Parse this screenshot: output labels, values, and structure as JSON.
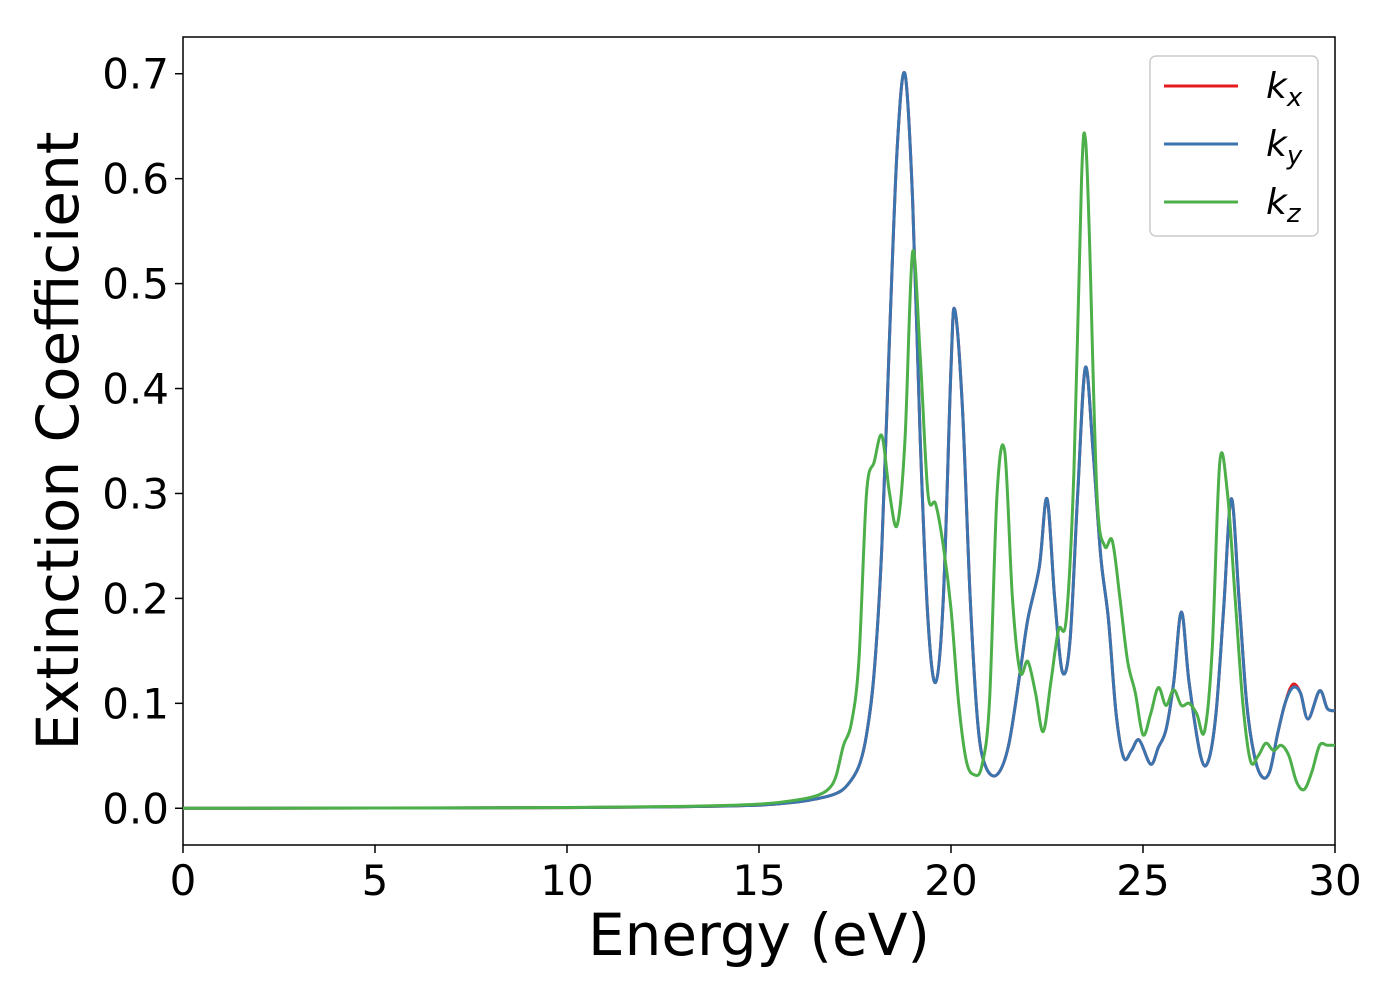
{
  "chart_data": {
    "type": "line",
    "title": "",
    "xlabel": "Energy (eV)",
    "ylabel": "Extinction Coefficient",
    "xlim": [
      0,
      30
    ],
    "ylim": [
      -0.035,
      0.735
    ],
    "xticks": [
      0,
      5,
      10,
      15,
      20,
      25,
      30
    ],
    "xtick_labels": [
      "0",
      "5",
      "10",
      "15",
      "20",
      "25",
      "30"
    ],
    "yticks": [
      0.0,
      0.1,
      0.2,
      0.3,
      0.4,
      0.5,
      0.6,
      0.7
    ],
    "ytick_labels": [
      "0.0",
      "0.1",
      "0.2",
      "0.3",
      "0.4",
      "0.5",
      "0.6",
      "0.7"
    ],
    "grid": false,
    "legend_position": "top-right",
    "series": [
      {
        "name": "k",
        "subscript": "x",
        "color": "#e41a1c",
        "x": [
          0,
          5,
          10,
          13,
          15,
          16,
          16.5,
          17,
          17.3,
          17.6,
          17.8,
          18.0,
          18.2,
          18.4,
          18.6,
          18.8,
          19.0,
          19.2,
          19.4,
          19.6,
          19.8,
          20.0,
          20.1,
          20.3,
          20.5,
          20.7,
          20.9,
          21.2,
          21.5,
          21.8,
          22.0,
          22.3,
          22.5,
          22.7,
          22.9,
          23.1,
          23.3,
          23.5,
          23.7,
          23.9,
          24.1,
          24.3,
          24.5,
          24.7,
          24.9,
          25.2,
          25.4,
          25.6,
          25.8,
          26.0,
          26.2,
          26.5,
          26.7,
          26.9,
          27.1,
          27.3,
          27.5,
          27.7,
          27.9,
          28.1,
          28.3,
          28.5,
          28.7,
          28.9,
          29.1,
          29.3,
          29.6,
          29.8,
          30.0
        ],
        "y": [
          0,
          0.0002,
          0.0006,
          0.0015,
          0.003,
          0.006,
          0.009,
          0.014,
          0.022,
          0.04,
          0.07,
          0.13,
          0.25,
          0.45,
          0.63,
          0.7,
          0.58,
          0.35,
          0.18,
          0.12,
          0.2,
          0.42,
          0.475,
          0.38,
          0.2,
          0.08,
          0.04,
          0.032,
          0.06,
          0.13,
          0.18,
          0.23,
          0.295,
          0.2,
          0.13,
          0.16,
          0.3,
          0.42,
          0.34,
          0.24,
          0.18,
          0.09,
          0.048,
          0.055,
          0.065,
          0.042,
          0.058,
          0.075,
          0.12,
          0.187,
          0.12,
          0.05,
          0.045,
          0.09,
          0.19,
          0.295,
          0.2,
          0.1,
          0.05,
          0.03,
          0.035,
          0.07,
          0.1,
          0.118,
          0.11,
          0.085,
          0.112,
          0.095,
          0.093
        ]
      },
      {
        "name": "k",
        "subscript": "y",
        "color": "#3a75b0",
        "x": [
          0,
          5,
          10,
          13,
          15,
          16,
          16.5,
          17,
          17.3,
          17.6,
          17.8,
          18.0,
          18.2,
          18.4,
          18.6,
          18.8,
          19.0,
          19.2,
          19.4,
          19.6,
          19.8,
          20.0,
          20.1,
          20.3,
          20.5,
          20.7,
          20.9,
          21.2,
          21.5,
          21.8,
          22.0,
          22.3,
          22.5,
          22.7,
          22.9,
          23.1,
          23.3,
          23.5,
          23.7,
          23.9,
          24.1,
          24.3,
          24.5,
          24.7,
          24.9,
          25.2,
          25.4,
          25.6,
          25.8,
          26.0,
          26.2,
          26.5,
          26.7,
          26.9,
          27.1,
          27.3,
          27.5,
          27.7,
          27.9,
          28.1,
          28.3,
          28.5,
          28.7,
          28.9,
          29.1,
          29.3,
          29.6,
          29.8,
          30.0
        ],
        "y": [
          0,
          0.0002,
          0.0006,
          0.0015,
          0.003,
          0.006,
          0.009,
          0.014,
          0.022,
          0.04,
          0.07,
          0.13,
          0.25,
          0.45,
          0.63,
          0.7,
          0.58,
          0.35,
          0.18,
          0.12,
          0.2,
          0.42,
          0.475,
          0.38,
          0.2,
          0.08,
          0.04,
          0.032,
          0.06,
          0.13,
          0.18,
          0.23,
          0.295,
          0.2,
          0.13,
          0.16,
          0.3,
          0.42,
          0.34,
          0.24,
          0.18,
          0.09,
          0.048,
          0.055,
          0.065,
          0.042,
          0.058,
          0.075,
          0.12,
          0.187,
          0.12,
          0.05,
          0.045,
          0.09,
          0.19,
          0.295,
          0.2,
          0.1,
          0.05,
          0.03,
          0.035,
          0.07,
          0.1,
          0.115,
          0.11,
          0.085,
          0.112,
          0.095,
          0.093
        ]
      },
      {
        "name": "k",
        "subscript": "z",
        "color": "#4daf4a",
        "x": [
          0,
          5,
          10,
          13,
          15,
          16,
          16.5,
          16.8,
          17.0,
          17.2,
          17.4,
          17.6,
          17.8,
          18.0,
          18.2,
          18.4,
          18.6,
          18.8,
          19.0,
          19.2,
          19.4,
          19.6,
          19.8,
          20.0,
          20.2,
          20.4,
          20.6,
          20.8,
          21.0,
          21.2,
          21.4,
          21.6,
          21.8,
          22.0,
          22.2,
          22.4,
          22.6,
          22.8,
          23.0,
          23.2,
          23.4,
          23.5,
          23.6,
          23.8,
          24.0,
          24.2,
          24.4,
          24.6,
          24.8,
          25.0,
          25.2,
          25.4,
          25.6,
          25.8,
          26.0,
          26.2,
          26.4,
          26.6,
          26.8,
          27.0,
          27.2,
          27.4,
          27.6,
          27.8,
          28.0,
          28.2,
          28.4,
          28.6,
          28.8,
          29.0,
          29.2,
          29.4,
          29.6,
          29.8,
          30.0
        ],
        "y": [
          0,
          0.0002,
          0.0007,
          0.0018,
          0.004,
          0.008,
          0.012,
          0.018,
          0.03,
          0.06,
          0.08,
          0.14,
          0.3,
          0.33,
          0.355,
          0.3,
          0.27,
          0.35,
          0.53,
          0.43,
          0.3,
          0.29,
          0.25,
          0.19,
          0.1,
          0.045,
          0.032,
          0.04,
          0.1,
          0.3,
          0.34,
          0.2,
          0.13,
          0.14,
          0.11,
          0.073,
          0.12,
          0.17,
          0.18,
          0.32,
          0.6,
          0.638,
          0.55,
          0.3,
          0.25,
          0.255,
          0.2,
          0.14,
          0.11,
          0.07,
          0.09,
          0.115,
          0.098,
          0.113,
          0.098,
          0.1,
          0.09,
          0.073,
          0.15,
          0.33,
          0.3,
          0.2,
          0.1,
          0.045,
          0.05,
          0.062,
          0.055,
          0.06,
          0.05,
          0.025,
          0.018,
          0.035,
          0.06,
          0.06,
          0.06
        ]
      }
    ]
  }
}
